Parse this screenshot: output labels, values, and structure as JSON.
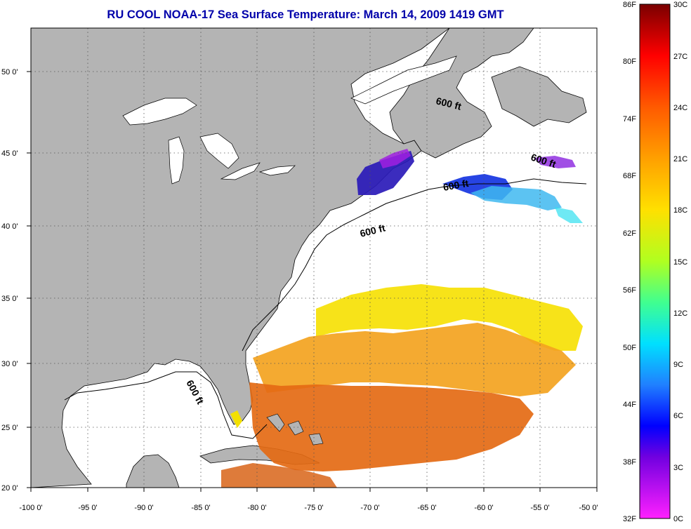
{
  "title": "RU COOL  NOAA-17  Sea Surface Temperature:  March 14, 2009 1419 GMT",
  "map": {
    "x_ticks": [
      "-100 0'",
      "-95 0'",
      "-90 0'",
      "-85 0'",
      "-80 0'",
      "-75 0'",
      "-70 0'",
      "-65 0'",
      "-60 0'",
      "-55 0'",
      "-50 0'"
    ],
    "y_ticks": [
      "50 0'",
      "45 0'",
      "40 0'",
      "35 0'",
      "30 0'",
      "25 0'",
      "20 0'"
    ],
    "contour_labels": [
      "600 ft",
      "600 ft",
      "600 ft",
      "600 ft",
      "600 ft"
    ],
    "colors": {
      "land": "#b4b4b4",
      "ocean": "#ffffff",
      "grid": "#555555"
    }
  },
  "colorbar": {
    "fahrenheit": [
      "86F",
      "80F",
      "74F",
      "68F",
      "62F",
      "56F",
      "50F",
      "44F",
      "38F",
      "32F"
    ],
    "celsius": [
      "30C",
      "27C",
      "24C",
      "21C",
      "18C",
      "15C",
      "12C",
      "9C",
      "6C",
      "3C",
      "0C"
    ]
  }
}
